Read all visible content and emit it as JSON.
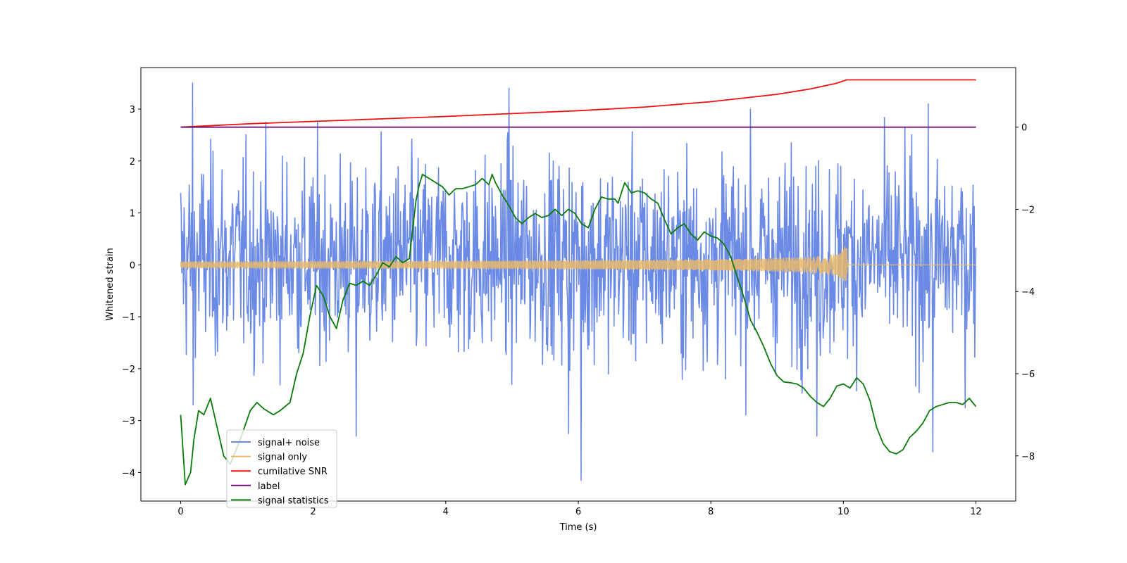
{
  "chart_data": {
    "type": "line",
    "title": "",
    "xlabel": "Time (s)",
    "ylabel": "Whitened strain",
    "xlim": [
      -0.6,
      12.6
    ],
    "ylim": [
      -4.55,
      3.8
    ],
    "y2lim": [
      -9.1,
      1.45
    ],
    "x_ticks": [
      0,
      2,
      4,
      6,
      8,
      10,
      12
    ],
    "y_ticks": [
      -4,
      -3,
      -2,
      -1,
      0,
      1,
      2,
      3
    ],
    "y2_ticks": [
      -8,
      -6,
      -4,
      -2,
      0
    ],
    "grid": false,
    "legend_position": "lower-left",
    "series": [
      {
        "name": "signal+ noise",
        "axis": "left",
        "color": "#6b8ae6",
        "kind": "noise",
        "x_range": [
          0,
          12
        ],
        "samples": 1400,
        "typical_amplitude": [
          -1.6,
          1.9
        ],
        "max": 3.5,
        "min": -4.15
      },
      {
        "name": "signal only",
        "axis": "left",
        "color": "#e8b96a",
        "kind": "chirp",
        "x_range": [
          0,
          12
        ],
        "merger_time": 10.05,
        "peak_amplitude": 0.42,
        "value_after_merger": 0.0
      },
      {
        "name": "cumilative SNR",
        "axis": "right",
        "color": "#ee1111",
        "x": [
          0,
          1,
          2,
          3,
          4,
          5,
          6,
          7,
          8,
          9,
          9.5,
          9.9,
          10.05,
          10.1,
          12
        ],
        "y": [
          0.0,
          0.08,
          0.14,
          0.2,
          0.26,
          0.33,
          0.4,
          0.49,
          0.62,
          0.8,
          0.93,
          1.07,
          1.15,
          1.15,
          1.15
        ]
      },
      {
        "name": "label",
        "axis": "right",
        "color": "#6b1570",
        "x": [
          0,
          12
        ],
        "y": [
          0,
          0
        ]
      },
      {
        "name": "signal statistics",
        "axis": "right",
        "color": "#0a7a0a",
        "x": [
          0.0,
          0.07,
          0.15,
          0.2,
          0.27,
          0.35,
          0.45,
          0.55,
          0.65,
          0.75,
          0.9,
          1.05,
          1.15,
          1.25,
          1.4,
          1.5,
          1.65,
          1.75,
          1.85,
          1.95,
          2.05,
          2.15,
          2.25,
          2.35,
          2.45,
          2.55,
          2.65,
          2.75,
          2.85,
          2.95,
          3.05,
          3.15,
          3.25,
          3.35,
          3.45,
          3.55,
          3.6,
          3.65,
          3.75,
          3.85,
          3.95,
          4.05,
          4.15,
          4.25,
          4.35,
          4.45,
          4.55,
          4.65,
          4.7,
          4.75,
          4.85,
          4.95,
          5.05,
          5.15,
          5.25,
          5.35,
          5.45,
          5.55,
          5.65,
          5.75,
          5.85,
          5.95,
          6.05,
          6.15,
          6.25,
          6.35,
          6.45,
          6.55,
          6.6,
          6.7,
          6.8,
          6.9,
          7.0,
          7.1,
          7.2,
          7.3,
          7.4,
          7.5,
          7.6,
          7.7,
          7.8,
          7.9,
          8.0,
          8.1,
          8.2,
          8.3,
          8.4,
          8.5,
          8.6,
          8.7,
          8.8,
          8.9,
          9.0,
          9.1,
          9.2,
          9.3,
          9.4,
          9.5,
          9.6,
          9.7,
          9.8,
          9.9,
          10.0,
          10.1,
          10.2,
          10.3,
          10.4,
          10.5,
          10.6,
          10.7,
          10.8,
          10.9,
          11.0,
          11.1,
          11.2,
          11.3,
          11.4,
          11.5,
          11.6,
          11.7,
          11.8,
          11.9,
          12.0
        ],
        "y": [
          -7.0,
          -8.7,
          -8.4,
          -7.6,
          -6.9,
          -7.0,
          -6.6,
          -7.3,
          -8.0,
          -8.2,
          -7.6,
          -6.9,
          -6.7,
          -6.85,
          -7.0,
          -6.9,
          -6.7,
          -6.0,
          -5.5,
          -4.6,
          -3.85,
          -4.1,
          -4.6,
          -4.9,
          -4.2,
          -3.8,
          -3.85,
          -3.75,
          -3.85,
          -3.6,
          -3.3,
          -3.4,
          -3.15,
          -3.3,
          -3.2,
          -1.8,
          -1.4,
          -1.15,
          -1.25,
          -1.35,
          -1.45,
          -1.65,
          -1.5,
          -1.5,
          -1.45,
          -1.4,
          -1.25,
          -1.4,
          -1.15,
          -1.35,
          -1.65,
          -1.9,
          -2.2,
          -2.35,
          -2.2,
          -2.1,
          -2.2,
          -2.15,
          -2.0,
          -2.15,
          -2.0,
          -2.1,
          -2.35,
          -2.45,
          -2.0,
          -1.7,
          -1.75,
          -1.75,
          -1.85,
          -1.35,
          -1.6,
          -1.55,
          -1.6,
          -1.75,
          -1.85,
          -2.25,
          -2.6,
          -2.45,
          -2.35,
          -2.6,
          -2.75,
          -2.55,
          -2.65,
          -2.7,
          -2.85,
          -3.15,
          -3.65,
          -4.15,
          -4.7,
          -5.0,
          -5.35,
          -5.75,
          -6.05,
          -6.2,
          -6.22,
          -6.25,
          -6.35,
          -6.55,
          -6.7,
          -6.8,
          -6.6,
          -6.3,
          -6.25,
          -6.35,
          -6.1,
          -6.25,
          -6.65,
          -7.3,
          -7.7,
          -7.9,
          -7.95,
          -7.85,
          -7.55,
          -7.4,
          -7.2,
          -6.9,
          -6.8,
          -6.75,
          -6.7,
          -6.7,
          -6.75,
          -6.6,
          -6.8
        ]
      }
    ]
  }
}
